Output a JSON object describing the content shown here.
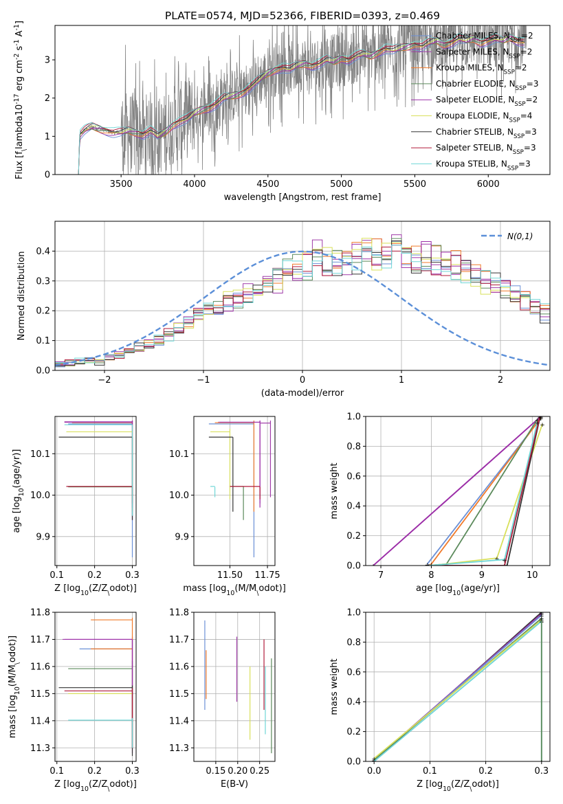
{
  "title": "PLATE=0574, MJD=52366, FIBERID=0393, z=0.469",
  "series": [
    {
      "name": "Chabrier MILES, N$_{SSP}$=2",
      "color": "#6a8fd6"
    },
    {
      "name": "Salpeter MILES, N$_{SSP}$=2",
      "color": "#9f3aa8"
    },
    {
      "name": "Kroupa MILES, N$_{SSP}$=2",
      "color": "#f07a2a"
    },
    {
      "name": "Chabrier ELODIE, N$_{SSP}$=3",
      "color": "#5b8a5b"
    },
    {
      "name": "Salpeter ELODIE, N$_{SSP}$=2",
      "color": "#9c2ea8"
    },
    {
      "name": "Kroupa ELODIE, N$_{SSP}$=4",
      "color": "#d8e05a"
    },
    {
      "name": "Chabrier STELIB, N$_{SSP}$=3",
      "color": "#333333"
    },
    {
      "name": "Salpeter STELIB, N$_{SSP}$=3",
      "color": "#b01a3a"
    },
    {
      "name": "Kroupa STELIB, N$_{SSP}$=3",
      "color": "#6fd6d6"
    }
  ],
  "chart_data": [
    {
      "type": "line",
      "id": "spectrum",
      "xlabel": "wavelength [Angstrom, rest frame]",
      "ylabel": "Flux [f$_\\lambda$10$^{-17}$ erg cm$^{-2}$ s$^{-1}$ A$^{-1}$]",
      "xlim": [
        3050,
        6420
      ],
      "ylim": [
        0,
        3.9
      ],
      "xticks": [
        3500,
        4000,
        4500,
        5000,
        5500,
        6000
      ],
      "yticks": [
        0,
        1,
        2,
        3
      ],
      "data_color": "#808080",
      "model_x": [
        3210,
        3250,
        3300,
        3350,
        3400,
        3450,
        3500,
        3550,
        3600,
        3650,
        3700,
        3750,
        3800,
        3850,
        3900,
        3950,
        4000,
        4050,
        4100,
        4150,
        4200,
        4250,
        4300,
        4350,
        4400,
        4450,
        4500,
        4550,
        4600,
        4650,
        4700,
        4750,
        4800,
        4850,
        4900,
        4950,
        5000,
        5050,
        5100,
        5150,
        5200,
        5250,
        5300,
        5350,
        5400,
        5450,
        5500,
        5550,
        5600,
        5650,
        5700,
        5750,
        5800,
        5850,
        5900,
        5950,
        6000,
        6050,
        6100,
        6150,
        6200,
        6250
      ],
      "model_y": [
        1.0,
        1.15,
        1.25,
        1.2,
        1.15,
        1.1,
        1.1,
        1.15,
        1.1,
        1.05,
        1.15,
        1.0,
        1.1,
        1.3,
        1.4,
        1.45,
        1.6,
        1.7,
        1.75,
        1.85,
        2.0,
        2.05,
        2.1,
        2.2,
        2.35,
        2.5,
        2.65,
        2.75,
        2.8,
        2.75,
        2.85,
        2.9,
        2.85,
        2.9,
        3.0,
        2.95,
        3.05,
        3.0,
        3.1,
        3.15,
        3.1,
        3.2,
        3.3,
        3.25,
        3.3,
        3.35,
        3.4,
        3.35,
        3.45,
        3.5,
        3.4,
        3.45,
        3.55,
        3.5,
        3.55,
        3.45,
        3.5,
        3.55,
        3.5,
        3.6,
        3.5,
        3.45
      ],
      "data_x_range": [
        3210,
        6260
      ],
      "noise_start": 3500
    },
    {
      "type": "histogram",
      "id": "residuals",
      "xlabel": "(data-model)/error",
      "ylabel": "Normed distribution",
      "xlim": [
        -2.5,
        2.5
      ],
      "ylim": [
        0,
        0.5
      ],
      "xticks": [
        -2,
        -1,
        0,
        1,
        2
      ],
      "yticks": [
        0,
        0.1,
        0.2,
        0.3,
        0.4
      ],
      "bin_width": 0.1,
      "bin_start": -2.5,
      "reference_curve": "$\\mathcal{N}(0,1)$",
      "reference_color": "#5b8fd8",
      "base_values": [
        0.02,
        0.025,
        0.03,
        0.035,
        0.03,
        0.045,
        0.05,
        0.065,
        0.075,
        0.085,
        0.1,
        0.12,
        0.14,
        0.155,
        0.185,
        0.2,
        0.21,
        0.23,
        0.25,
        0.255,
        0.265,
        0.29,
        0.31,
        0.325,
        0.35,
        0.355,
        0.38,
        0.36,
        0.36,
        0.37,
        0.38,
        0.39,
        0.395,
        0.4,
        0.4,
        0.4,
        0.385,
        0.38,
        0.37,
        0.355,
        0.35,
        0.335,
        0.32,
        0.3,
        0.285,
        0.27,
        0.255,
        0.235,
        0.21,
        0.19,
        0.175,
        0.155,
        0.14,
        0.12,
        0.1,
        0.085,
        0.075,
        0.065,
        0.055,
        0.05
      ]
    },
    {
      "type": "scatter",
      "id": "age-vs-Z",
      "xlabel": "Z [log$_{10}$(Z/Z$_\\odot$)]",
      "ylabel": "age  [log$_{10}$(age/yr)]",
      "xlim": [
        0.095,
        0.31
      ],
      "ylim": [
        9.83,
        10.19
      ],
      "xticks": [
        0.1,
        0.2,
        0.3
      ],
      "yticks": [
        9.9,
        10.0,
        10.1
      ],
      "points": [
        {
          "series": 0,
          "x": 0.3,
          "y": 10.172,
          "xerr": [
            0.13,
            0.3
          ],
          "yerr": [
            9.85,
            10.18
          ]
        },
        {
          "series": 1,
          "x": 0.3,
          "y": 10.177,
          "xerr": [
            0.12,
            0.3
          ],
          "yerr": [
            9.94,
            10.18
          ]
        },
        {
          "series": 2,
          "x": 0.3,
          "y": 10.175,
          "xerr": [
            0.14,
            0.3
          ],
          "yerr": [
            9.96,
            10.18
          ]
        },
        {
          "series": 3,
          "x": 0.3,
          "y": 10.02,
          "xerr": [
            0.13,
            0.3
          ],
          "yerr": [
            9.95,
            10.02
          ]
        },
        {
          "series": 4,
          "x": 0.3,
          "y": 10.176,
          "xerr": [
            0.12,
            0.3
          ],
          "yerr": [
            9.97,
            10.18
          ]
        },
        {
          "series": 5,
          "x": 0.3,
          "y": 10.153,
          "xerr": [
            0.125,
            0.3
          ],
          "yerr": [
            9.99,
            10.16
          ]
        },
        {
          "series": 6,
          "x": 0.3,
          "y": 10.14,
          "xerr": [
            0.105,
            0.3
          ],
          "yerr": [
            9.94,
            10.14
          ]
        },
        {
          "series": 7,
          "x": 0.3,
          "y": 10.021,
          "xerr": [
            0.125,
            0.3
          ],
          "yerr": [
            9.98,
            10.02
          ]
        },
        {
          "series": 8,
          "x": 0.3,
          "y": 10.17,
          "xerr": [
            0.12,
            0.3
          ],
          "yerr": [
            9.95,
            10.17
          ]
        }
      ]
    },
    {
      "type": "scatter",
      "id": "age-vs-mass",
      "xlabel": "mass [log$_{10}$(M/M$_\\odot$)]",
      "ylabel": "",
      "xlim": [
        11.26,
        11.8
      ],
      "ylim": [
        9.83,
        10.19
      ],
      "xticks": [
        11.5,
        11.75
      ],
      "xticklabels": [
        "11.50",
        "11.75"
      ],
      "yticks": [
        9.9,
        10.0,
        10.1
      ],
      "points": [
        {
          "series": 0,
          "x": 11.66,
          "y": 10.172,
          "xerr": [
            11.36,
            11.66
          ],
          "yerr": [
            9.85,
            10.18
          ]
        },
        {
          "series": 1,
          "x": 11.7,
          "y": 10.176,
          "xerr": [
            11.42,
            11.7
          ],
          "yerr": [
            9.98,
            10.18
          ]
        },
        {
          "series": 2,
          "x": 11.66,
          "y": 10.175,
          "xerr": [
            11.4,
            11.66
          ],
          "yerr": [
            9.96,
            10.18
          ]
        },
        {
          "series": 3,
          "x": 11.59,
          "y": 10.021,
          "xerr": [
            11.5,
            11.59
          ],
          "yerr": [
            9.94,
            10.02
          ]
        },
        {
          "series": 4,
          "x": 11.7,
          "y": 10.176,
          "xerr": [
            11.43,
            11.7
          ],
          "yerr": [
            9.97,
            10.18
          ]
        },
        {
          "series": 5,
          "x": 11.5,
          "y": 10.153,
          "xerr": [
            11.37,
            11.5
          ],
          "yerr": [
            9.99,
            10.16
          ]
        },
        {
          "series": 6,
          "x": 11.52,
          "y": 10.14,
          "xerr": [
            11.36,
            11.52
          ],
          "yerr": [
            9.96,
            10.14
          ]
        },
        {
          "series": 7,
          "x": 11.7,
          "y": 10.021,
          "xerr": [
            11.5,
            11.7
          ],
          "yerr": [
            9.99,
            10.02
          ]
        },
        {
          "series": 8,
          "x": 11.4,
          "y": 10.021,
          "xerr": [
            11.37,
            11.4
          ],
          "yerr": [
            9.995,
            10.02
          ]
        },
        {
          "series": 1,
          "x": 11.77,
          "y": 10.174,
          "xerr": [
            11.7,
            11.77
          ],
          "yerr": [
            9.995,
            10.18
          ]
        }
      ]
    },
    {
      "type": "line",
      "id": "mass-weight-vs-age",
      "xlabel": "age  [log$_{10}$(age/yr)]",
      "ylabel": "mass weight",
      "xlim": [
        6.7,
        10.35
      ],
      "ylim": [
        0,
        1.0
      ],
      "xticks": [
        7,
        8,
        9,
        10
      ],
      "yticks": [
        0.0,
        0.2,
        0.4,
        0.6,
        0.8,
        1.0
      ],
      "lines": [
        {
          "series": 1,
          "x": [
            6.85,
            10.17
          ],
          "y": [
            0.0,
            1.0
          ]
        },
        {
          "series": 4,
          "x": [
            6.85,
            10.17
          ],
          "y": [
            0.0,
            1.0
          ]
        },
        {
          "series": 0,
          "x": [
            7.92,
            10.17
          ],
          "y": [
            0.01,
            0.99
          ]
        },
        {
          "series": 2,
          "x": [
            7.95,
            8.0,
            10.17
          ],
          "y": [
            0.0,
            0.01,
            0.99
          ]
        },
        {
          "series": 3,
          "x": [
            7.95,
            8.3,
            10.1
          ],
          "y": [
            0.0,
            0.01,
            0.98
          ]
        },
        {
          "series": 5,
          "x": [
            8.0,
            9.3,
            10.2
          ],
          "y": [
            0.0,
            0.05,
            0.95
          ]
        },
        {
          "series": 6,
          "x": [
            7.95,
            9.5,
            10.15
          ],
          "y": [
            0.0,
            0.0,
            0.99
          ]
        },
        {
          "series": 7,
          "x": [
            7.95,
            9.45,
            10.15
          ],
          "y": [
            0.0,
            0.0,
            1.0
          ]
        },
        {
          "series": 8,
          "x": [
            7.95,
            9.45,
            10.1
          ],
          "y": [
            0.0,
            0.04,
            0.96
          ]
        }
      ]
    },
    {
      "type": "scatter",
      "id": "mass-vs-Z",
      "xlabel": "Z [log$_{10}$(Z/Z$_\\odot$)]",
      "ylabel": "mass [log$_{10}$(M/M$_\\odot$)]",
      "xlim": [
        0.095,
        0.31
      ],
      "ylim": [
        11.25,
        11.8
      ],
      "xticks": [
        0.1,
        0.2,
        0.3
      ],
      "yticks": [
        11.3,
        11.4,
        11.5,
        11.6,
        11.7,
        11.8
      ],
      "points": [
        {
          "series": 0,
          "x": 0.3,
          "y": 11.665,
          "xerr": [
            0.16,
            0.3
          ],
          "yerr": [
            11.3,
            11.7
          ]
        },
        {
          "series": 1,
          "x": 0.3,
          "y": 11.7,
          "xerr": [
            0.115,
            0.3
          ],
          "yerr": [
            11.28,
            11.7
          ]
        },
        {
          "series": 2,
          "x": 0.3,
          "y": 11.665,
          "xerr": [
            0.19,
            0.3
          ],
          "yerr": [
            11.3,
            11.7
          ]
        },
        {
          "series": 3,
          "x": 0.3,
          "y": 11.592,
          "xerr": [
            0.13,
            0.3
          ],
          "yerr": [
            11.3,
            11.62
          ]
        },
        {
          "series": 4,
          "x": 0.3,
          "y": 11.7,
          "xerr": [
            0.12,
            0.3
          ],
          "yerr": [
            11.3,
            11.71
          ]
        },
        {
          "series": 5,
          "x": 0.3,
          "y": 11.5,
          "xerr": [
            0.13,
            0.3
          ],
          "yerr": [
            11.3,
            11.5
          ]
        },
        {
          "series": 6,
          "x": 0.3,
          "y": 11.522,
          "xerr": [
            0.105,
            0.3
          ],
          "yerr": [
            11.27,
            11.53
          ]
        },
        {
          "series": 7,
          "x": 0.3,
          "y": 11.51,
          "xerr": [
            0.12,
            0.3
          ],
          "yerr": [
            11.3,
            11.52
          ]
        },
        {
          "series": 8,
          "x": 0.3,
          "y": 11.402,
          "xerr": [
            0.13,
            0.3
          ],
          "yerr": [
            11.3,
            11.41
          ]
        },
        {
          "series": 2,
          "x": 0.3,
          "y": 11.772,
          "xerr": [
            0.19,
            0.3
          ],
          "yerr": [
            11.7,
            11.78
          ]
        }
      ]
    },
    {
      "type": "scatter",
      "id": "mass-vs-EBV",
      "xlabel": "E(B-V)",
      "ylabel": "",
      "xlim": [
        0.1,
        0.285
      ],
      "ylim": [
        11.25,
        11.8
      ],
      "xticks": [
        0.15,
        0.2,
        0.25
      ],
      "yticks": [
        11.3,
        11.4,
        11.5,
        11.6,
        11.7,
        11.8
      ],
      "points": [
        {
          "series": 0,
          "x": 0.125,
          "y": 11.6,
          "yerr": [
            11.44,
            11.77
          ]
        },
        {
          "series": 2,
          "x": 0.128,
          "y": 11.57,
          "yerr": [
            11.48,
            11.66
          ]
        },
        {
          "series": 1,
          "x": 0.198,
          "y": 11.6,
          "yerr": [
            11.47,
            11.71
          ]
        },
        {
          "series": 5,
          "x": 0.228,
          "y": 11.47,
          "yerr": [
            11.33,
            11.6
          ]
        },
        {
          "series": 7,
          "x": 0.26,
          "y": 11.57,
          "yerr": [
            11.44,
            11.7
          ]
        },
        {
          "series": 8,
          "x": 0.263,
          "y": 11.47,
          "yerr": [
            11.35,
            11.6
          ]
        },
        {
          "series": 3,
          "x": 0.277,
          "y": 11.45,
          "yerr": [
            11.28,
            11.63
          ]
        }
      ]
    },
    {
      "type": "line",
      "id": "mass-weight-vs-Z",
      "xlabel": "Z [log$_{10}$(Z/Z$_\\odot$)]",
      "ylabel": "mass weight",
      "xlim": [
        -0.015,
        0.315
      ],
      "ylim": [
        0,
        1.0
      ],
      "xticks": [
        0.0,
        0.1,
        0.2,
        0.3
      ],
      "yticks": [
        0.0,
        0.2,
        0.4,
        0.6,
        0.8,
        1.0
      ],
      "lines": [
        {
          "series": 6,
          "x": [
            0.0,
            0.3
          ],
          "y": [
            0.0,
            1.0
          ]
        },
        {
          "series": 1,
          "x": [
            0.0,
            0.3
          ],
          "y": [
            0.01,
            0.99
          ]
        },
        {
          "series": 0,
          "x": [
            0.0,
            0.3
          ],
          "y": [
            0.01,
            0.98
          ]
        },
        {
          "series": 3,
          "x": [
            0.0,
            0.3
          ],
          "y": [
            0.01,
            0.96
          ]
        },
        {
          "series": 5,
          "x": [
            0.0,
            0.3
          ],
          "y": [
            0.02,
            0.95
          ]
        },
        {
          "series": 8,
          "x": [
            0.0,
            0.3
          ],
          "y": [
            0.0,
            0.94
          ]
        },
        {
          "series": 8,
          "x": [
            0.3,
            0.3
          ],
          "y": [
            0.0,
            0.94
          ]
        },
        {
          "series": 3,
          "x": [
            0.3,
            0.3
          ],
          "y": [
            0.0,
            0.96
          ]
        }
      ]
    }
  ]
}
